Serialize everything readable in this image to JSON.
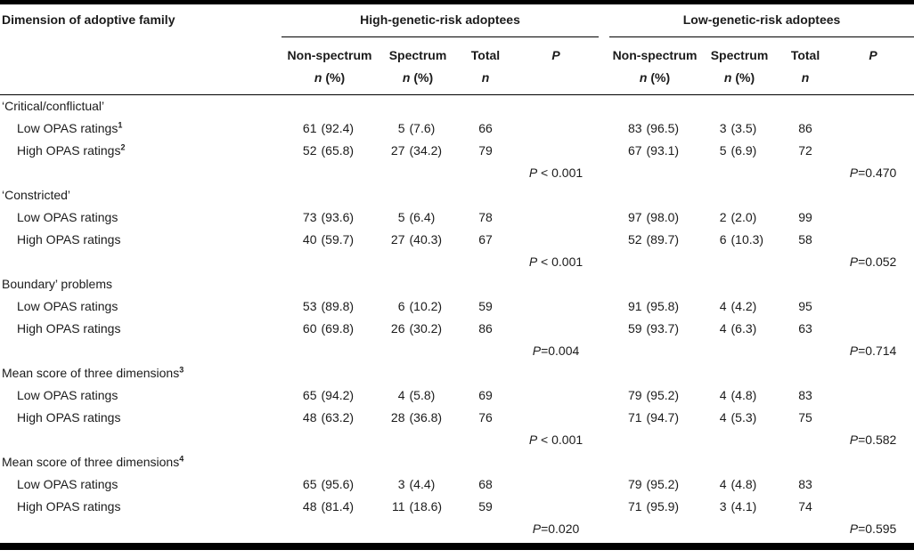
{
  "table": {
    "row_header": "Dimension of adoptive family",
    "groups": [
      {
        "label": "High-genetic-risk adoptees",
        "columns": [
          {
            "line1": "Non-spectrum",
            "line2": "n (%)"
          },
          {
            "line1": "Spectrum",
            "line2": "n (%)"
          },
          {
            "line1": "Total",
            "line2": "n"
          },
          {
            "line1": "P",
            "line2": ""
          }
        ]
      },
      {
        "label": "Low-genetic-risk adoptees",
        "columns": [
          {
            "line1": "Non-spectrum",
            "line2": "n (%)"
          },
          {
            "line1": "Spectrum",
            "line2": "n (%)"
          },
          {
            "line1": "Total",
            "line2": "n"
          },
          {
            "line1": "P",
            "line2": ""
          }
        ]
      }
    ],
    "sections": [
      {
        "label": "‘Critical/conflictual’",
        "sup": "",
        "rows": [
          {
            "label": "Low OPAS ratings",
            "sup": "1",
            "high": [
              "61",
              "(92.4)",
              "5",
              "(7.6)",
              "66"
            ],
            "low": [
              "83",
              "(96.5)",
              "3",
              "(3.5)",
              "86"
            ]
          },
          {
            "label": "High OPAS ratings",
            "sup": "2",
            "high": [
              "52",
              "(65.8)",
              "27",
              "(34.2)",
              "79"
            ],
            "low": [
              "67",
              "(93.1)",
              "5",
              "(6.9)",
              "72"
            ]
          }
        ],
        "p_high": "P < 0.001",
        "p_low": "P=0.470"
      },
      {
        "label": "‘Constricted’",
        "sup": "",
        "rows": [
          {
            "label": "Low OPAS ratings",
            "sup": "",
            "high": [
              "73",
              "(93.6)",
              "5",
              "(6.4)",
              "78"
            ],
            "low": [
              "97",
              "(98.0)",
              "2",
              "(2.0)",
              "99"
            ]
          },
          {
            "label": "High OPAS ratings",
            "sup": "",
            "high": [
              "40",
              "(59.7)",
              "27",
              "(40.3)",
              "67"
            ],
            "low": [
              "52",
              "(89.7)",
              "6",
              "(10.3)",
              "58"
            ]
          }
        ],
        "p_high": "P < 0.001",
        "p_low": "P=0.052"
      },
      {
        "label": "Boundary’ problems",
        "sup": "",
        "rows": [
          {
            "label": "Low OPAS ratings",
            "sup": "",
            "high": [
              "53",
              "(89.8)",
              "6",
              "(10.2)",
              "59"
            ],
            "low": [
              "91",
              "(95.8)",
              "4",
              "(4.2)",
              "95"
            ]
          },
          {
            "label": "High OPAS ratings",
            "sup": "",
            "high": [
              "60",
              "(69.8)",
              "26",
              "(30.2)",
              "86"
            ],
            "low": [
              "59",
              "(93.7)",
              "4",
              "(6.3)",
              "63"
            ]
          }
        ],
        "p_high": "P=0.004",
        "p_low": "P=0.714"
      },
      {
        "label": "Mean score of three dimensions",
        "sup": "3",
        "rows": [
          {
            "label": "Low OPAS ratings",
            "sup": "",
            "high": [
              "65",
              "(94.2)",
              "4",
              "(5.8)",
              "69"
            ],
            "low": [
              "79",
              "(95.2)",
              "4",
              "(4.8)",
              "83"
            ]
          },
          {
            "label": "High OPAS ratings",
            "sup": "",
            "high": [
              "48",
              "(63.2)",
              "28",
              "(36.8)",
              "76"
            ],
            "low": [
              "71",
              "(94.7)",
              "4",
              "(5.3)",
              "75"
            ]
          }
        ],
        "p_high": "P < 0.001",
        "p_low": "P=0.582"
      },
      {
        "label": "Mean score of three dimensions",
        "sup": "4",
        "rows": [
          {
            "label": "Low OPAS ratings",
            "sup": "",
            "high": [
              "65",
              "(95.6)",
              "3",
              "(4.4)",
              "68"
            ],
            "low": [
              "79",
              "(95.2)",
              "4",
              "(4.8)",
              "83"
            ]
          },
          {
            "label": "High OPAS ratings",
            "sup": "",
            "high": [
              "48",
              "(81.4)",
              "11",
              "(18.6)",
              "59"
            ],
            "low": [
              "71",
              "(95.9)",
              "3",
              "(4.1)",
              "74"
            ]
          }
        ],
        "p_high": "P=0.020",
        "p_low": "P=0.595"
      }
    ]
  }
}
